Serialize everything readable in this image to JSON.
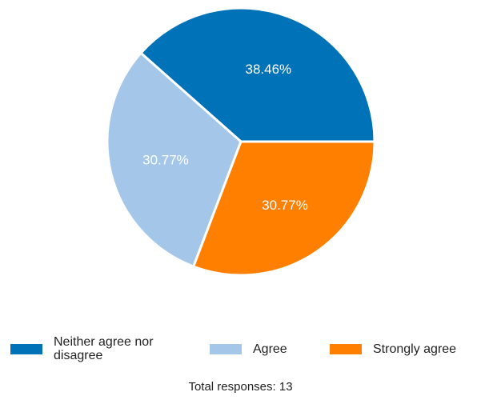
{
  "chart_data": {
    "type": "pie",
    "categories": [
      "Neither agree nor disagree",
      "Agree",
      "Strongly agree"
    ],
    "values": [
      38.46,
      30.77,
      30.77
    ],
    "labels": [
      "38.46%",
      "30.77%",
      "30.77%"
    ],
    "colors": [
      "#0072b8",
      "#a4c6e8",
      "#ff7f00"
    ],
    "legend_position": "bottom",
    "footer": "Total responses: 13"
  }
}
